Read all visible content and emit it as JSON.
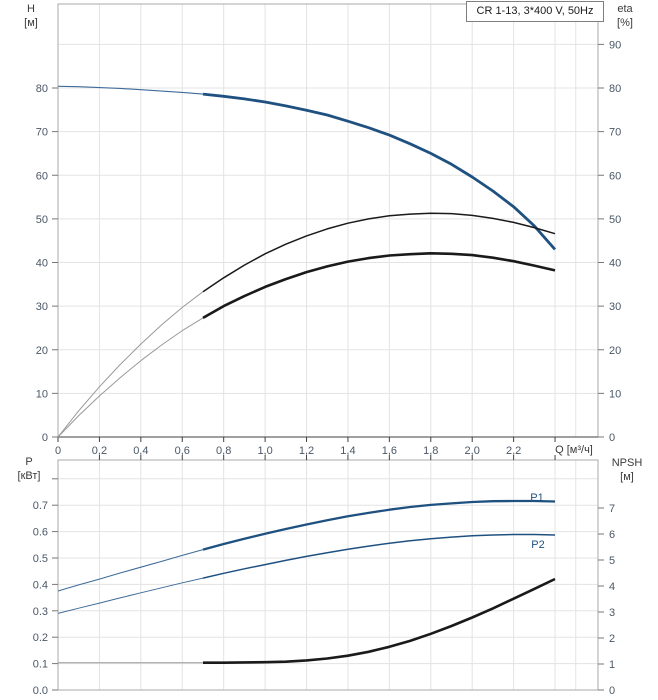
{
  "figure_title": "CR 1-13, 3*400 V, 50Hz",
  "colors": {
    "curve_blue": "#1f5180",
    "curve_black": "#1a1a1a",
    "lead_gray": "#999999",
    "grid": "#e3e3e3",
    "border": "#aaaaaa",
    "axis_dark": "#3f3f3f",
    "axis_gray": "#8c8c8c",
    "tick": "#777777",
    "tick_label": "#4a5766",
    "label_blue": "#1f5180"
  },
  "chart_data": [
    {
      "type": "line",
      "name": "head-efficiency-chart",
      "title": "CR 1-13, 3*400 V, 50Hz",
      "x": [
        0,
        0.1,
        0.2,
        0.3,
        0.4,
        0.5,
        0.6,
        0.7,
        0.8,
        0.9,
        1,
        1.1,
        1.2,
        1.3,
        1.4,
        1.5,
        1.6,
        1.7,
        1.8,
        1.9,
        2,
        2.1,
        2.2,
        2.3,
        2.4
      ],
      "x_axis": {
        "label": "Q [м³/ч]",
        "min": 0,
        "max": 2.6,
        "grid": [
          0.2,
          0.4,
          0.6,
          0.8,
          1.0,
          1.2,
          1.4,
          1.6,
          1.8,
          2.0,
          2.2,
          2.4,
          2.5
        ],
        "ticks": [
          {
            "q": 0,
            "label": "0"
          },
          {
            "q": 0.2,
            "label": "0,2"
          },
          {
            "q": 0.4,
            "label": "0,4"
          },
          {
            "q": 0.6,
            "label": "0,6"
          },
          {
            "q": 0.8,
            "label": "0,8"
          },
          {
            "q": 1.0,
            "label": "1,0"
          },
          {
            "q": 1.2,
            "label": "1,2"
          },
          {
            "q": 1.4,
            "label": "1,4"
          },
          {
            "q": 1.6,
            "label": "1,6"
          },
          {
            "q": 1.8,
            "label": "1,8"
          },
          {
            "q": 2.0,
            "label": "2,0"
          },
          {
            "q": 2.2,
            "label": "2,2"
          },
          {
            "q": 2.4,
            "label": ""
          }
        ]
      },
      "left_axis": {
        "label": "H",
        "unit": "[м]",
        "min": 0,
        "max": 99,
        "grid": [
          10,
          20,
          30,
          40,
          50,
          60,
          70,
          80,
          90
        ],
        "ticks": [
          {
            "v": 0,
            "label": "0"
          },
          {
            "v": 10,
            "label": "10"
          },
          {
            "v": 20,
            "label": "20"
          },
          {
            "v": 30,
            "label": "30"
          },
          {
            "v": 40,
            "label": "40"
          },
          {
            "v": 50,
            "label": "50"
          },
          {
            "v": 60,
            "label": "60"
          },
          {
            "v": 70,
            "label": "70"
          },
          {
            "v": 80,
            "label": "80"
          }
        ]
      },
      "right_axis": {
        "label": "eta",
        "unit": "[%]",
        "min": 0,
        "max": 99,
        "ticks": [
          {
            "v": 0,
            "label": "0"
          },
          {
            "v": 10,
            "label": "10"
          },
          {
            "v": 20,
            "label": "20"
          },
          {
            "v": 30,
            "label": "30"
          },
          {
            "v": 40,
            "label": "40"
          },
          {
            "v": 50,
            "label": "50"
          },
          {
            "v": 60,
            "label": "60"
          },
          {
            "v": 70,
            "label": "70"
          },
          {
            "v": 80,
            "label": "80"
          },
          {
            "v": 90,
            "label": "90"
          }
        ]
      },
      "series": [
        {
          "name": "H",
          "axis": "left",
          "color": "#1f5180",
          "lead_color": "#3f6b99",
          "w_thin": 1.1,
          "w_bold": 2.8,
          "bold_from": 0.7,
          "y": [
            80.4,
            80.3,
            80.1,
            79.9,
            79.6,
            79.3,
            79,
            78.6,
            78.1,
            77.5,
            76.8,
            75.9,
            74.9,
            73.8,
            72.4,
            70.9,
            69.2,
            67.2,
            65,
            62.5,
            59.6,
            56.4,
            52.8,
            48.4,
            43
          ]
        },
        {
          "name": "eta-pump",
          "axis": "right",
          "color": "#1a1a1a",
          "lead_color": "#999999",
          "w_thin": 1,
          "w_bold": 1.5,
          "bold_from": 0.7,
          "y": [
            0,
            6,
            11.5,
            16.6,
            21.3,
            25.7,
            29.7,
            33.3,
            36.5,
            39.4,
            42,
            44.2,
            46.1,
            47.7,
            49,
            50,
            50.7,
            51.1,
            51.3,
            51.2,
            50.8,
            50.1,
            49.2,
            48,
            46.6
          ]
        },
        {
          "name": "eta-pump-motor",
          "axis": "right",
          "color": "#1a1a1a",
          "lead_color": "#999999",
          "w_thin": 1,
          "w_bold": 2.6,
          "bold_from": 0.7,
          "y": [
            0,
            4.9,
            9.4,
            13.6,
            17.5,
            21.1,
            24.4,
            27.3,
            30,
            32.3,
            34.4,
            36.2,
            37.8,
            39.1,
            40.2,
            41,
            41.6,
            41.9,
            42.1,
            42,
            41.7,
            41.1,
            40.3,
            39.3,
            38.2
          ]
        }
      ]
    },
    {
      "type": "line",
      "name": "power-npsh-chart",
      "x": [
        0,
        0.1,
        0.2,
        0.3,
        0.4,
        0.5,
        0.6,
        0.7,
        0.8,
        0.9,
        1,
        1.1,
        1.2,
        1.3,
        1.4,
        1.5,
        1.6,
        1.7,
        1.8,
        1.9,
        2,
        2.1,
        2.2,
        2.3,
        2.4
      ],
      "x_axis": {
        "label": "",
        "min": 0,
        "max": 2.6,
        "grid": [
          0.2,
          0.4,
          0.6,
          0.8,
          1.0,
          1.2,
          1.4,
          1.6,
          1.8,
          2.0,
          2.2,
          2.4,
          2.5
        ],
        "ticks": [
          {
            "q": 0.2,
            "label": ""
          },
          {
            "q": 0.4,
            "label": ""
          },
          {
            "q": 0.6,
            "label": ""
          },
          {
            "q": 0.8,
            "label": ""
          },
          {
            "q": 1.0,
            "label": ""
          },
          {
            "q": 1.2,
            "label": ""
          },
          {
            "q": 1.4,
            "label": ""
          },
          {
            "q": 1.6,
            "label": ""
          },
          {
            "q": 1.8,
            "label": ""
          },
          {
            "q": 2.0,
            "label": ""
          },
          {
            "q": 2.2,
            "label": ""
          },
          {
            "q": 2.4,
            "label": ""
          }
        ]
      },
      "left_axis": {
        "label": "P",
        "unit": "[кВт]",
        "min": 0,
        "max": 0.87,
        "grid": [
          0.1,
          0.2,
          0.3,
          0.4,
          0.5,
          0.6,
          0.7,
          0.8
        ],
        "ticks": [
          {
            "v": 0,
            "label": "0.0"
          },
          {
            "v": 0.1,
            "label": "0.1"
          },
          {
            "v": 0.2,
            "label": "0.2"
          },
          {
            "v": 0.3,
            "label": "0.3"
          },
          {
            "v": 0.4,
            "label": "0.4"
          },
          {
            "v": 0.5,
            "label": "0.5"
          },
          {
            "v": 0.6,
            "label": "0.6"
          },
          {
            "v": 0.7,
            "label": "0.7"
          },
          {
            "v": 0.8,
            "label": ""
          }
        ]
      },
      "right_axis": {
        "label": "NPSH",
        "unit": "[м]",
        "min": 0,
        "max": 8.8,
        "ticks": [
          {
            "v": 0,
            "label": "0"
          },
          {
            "v": 1,
            "label": "1"
          },
          {
            "v": 2,
            "label": "2"
          },
          {
            "v": 3,
            "label": "3"
          },
          {
            "v": 4,
            "label": "4"
          },
          {
            "v": 5,
            "label": "5"
          },
          {
            "v": 6,
            "label": "6"
          },
          {
            "v": 7,
            "label": "7"
          }
        ]
      },
      "series": [
        {
          "name": "P1",
          "axis": "left",
          "color": "#1f5180",
          "lead_color": "#3f6b99",
          "w_thin": 1.1,
          "w_bold": 2.3,
          "bold_from": 0.7,
          "y": [
            0.375,
            0.398,
            0.42,
            0.443,
            0.465,
            0.487,
            0.51,
            0.532,
            0.553,
            0.573,
            0.592,
            0.61,
            0.627,
            0.643,
            0.658,
            0.671,
            0.683,
            0.693,
            0.701,
            0.707,
            0.712,
            0.715,
            0.716,
            0.716,
            0.714
          ]
        },
        {
          "name": "P2",
          "axis": "left",
          "color": "#1f5180",
          "lead_color": "#3f6b99",
          "w_thin": 1,
          "w_bold": 1.5,
          "bold_from": 0.7,
          "y": [
            0.29,
            0.31,
            0.329,
            0.349,
            0.368,
            0.387,
            0.406,
            0.424,
            0.442,
            0.459,
            0.475,
            0.491,
            0.506,
            0.52,
            0.533,
            0.545,
            0.556,
            0.565,
            0.573,
            0.579,
            0.584,
            0.587,
            0.589,
            0.589,
            0.587
          ]
        },
        {
          "name": "NPSH",
          "axis": "right",
          "color": "#1a1a1a",
          "lead_color": "#999999",
          "w_thin": 1,
          "w_bold": 2.6,
          "bold_from": 0.7,
          "y": [
            1.05,
            1.05,
            1.05,
            1.05,
            1.05,
            1.05,
            1.05,
            1.05,
            1.05,
            1.06,
            1.07,
            1.09,
            1.14,
            1.21,
            1.32,
            1.47,
            1.66,
            1.89,
            2.16,
            2.46,
            2.79,
            3.14,
            3.51,
            3.89,
            4.27
          ]
        }
      ],
      "annotations": [
        {
          "text": "P1"
        },
        {
          "text": "P2"
        }
      ]
    }
  ]
}
